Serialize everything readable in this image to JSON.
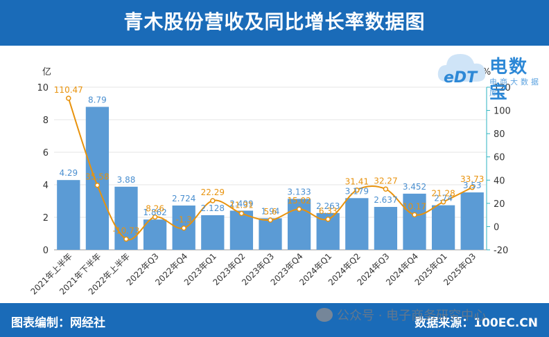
{
  "header": {
    "title": "青木股份营收及同比增长率数据图"
  },
  "footer": {
    "left": "图表编制：网经社",
    "right": "数据来源：100EC.CN"
  },
  "watermark": {
    "wechat": "公众号 · 电子商务研究中心"
  },
  "logo": {
    "text": "电数宝",
    "sub": "电商大数据库",
    "edt": "eDT"
  },
  "colors": {
    "bar": "#5b9bd5",
    "line": "#e8920c",
    "header": "#1a6bb8",
    "bar_label": "#4a8fd0",
    "line_label": "#e8920c"
  },
  "chart_data": {
    "type": "bar+line",
    "categories": [
      "2021年上半年",
      "2021年下半年",
      "2022年上半年",
      "2022年Q3",
      "2022年Q4",
      "2023年Q1",
      "2023年Q2",
      "2023年Q3",
      "2023年Q4",
      "2024年Q1",
      "2024年Q2",
      "2024年Q3",
      "2024年Q4",
      "2025年Q1",
      "2025年Q3"
    ],
    "series": [
      {
        "axis": "left",
        "type": "bar",
        "values": [
          4.29,
          8.79,
          3.88,
          1.862,
          2.724,
          2.128,
          2.409,
          1.94,
          3.133,
          2.263,
          3.179,
          2.637,
          3.452,
          2.74,
          3.53
        ],
        "labels": [
          "4.29",
          "8.79",
          "3.88",
          "1.862",
          "2.724",
          "2.128",
          "2.409",
          "1.94",
          "3.133",
          "2.263",
          "3.179",
          "2.637",
          "3.452",
          "2.74",
          "3.53"
        ]
      },
      {
        "axis": "right",
        "type": "line",
        "values": [
          110.47,
          35.58,
          -10.73,
          8.26,
          -1.3,
          22.29,
          11.31,
          5.6,
          15.02,
          6.33,
          31.41,
          32.27,
          10.17,
          21.28,
          33.73
        ],
        "labels": [
          "110.47",
          "35.58",
          "-10.73",
          "8.26",
          "-1.3",
          "22.29",
          "11.31",
          "5.6",
          "15.02",
          "6.33",
          "31.41",
          "32.27",
          "10.17",
          "21.28",
          "33.73"
        ]
      }
    ],
    "y_left": {
      "label": "亿",
      "min": 0,
      "max": 10,
      "ticks": [
        0,
        2,
        4,
        6,
        8,
        10
      ]
    },
    "y_right": {
      "label": "%",
      "min": -20,
      "max": 120,
      "ticks": [
        -20,
        0,
        20,
        40,
        60,
        80,
        100,
        120
      ]
    },
    "grid": true
  }
}
